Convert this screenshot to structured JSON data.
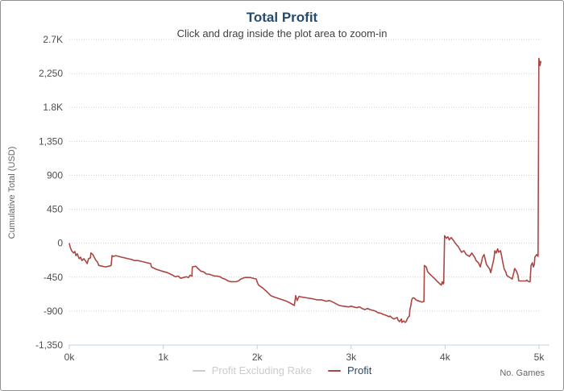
{
  "chart_data": {
    "type": "line",
    "title": "Total Profit",
    "subtitle": "Click and drag inside the plot area to zoom-in",
    "xlabel": "No. Games",
    "ylabel": "Cumulative Total (USD)",
    "xlim": [
      0,
      5000
    ],
    "ylim": [
      -1350,
      2700
    ],
    "grid": "dotted",
    "legend_position": "bottom-center",
    "x_ticks": {
      "values": [
        0,
        1000,
        2000,
        3000,
        4000,
        5000
      ],
      "labels": [
        "0k",
        "1k",
        "2k",
        "3k",
        "4k",
        "5k"
      ]
    },
    "y_ticks": {
      "values": [
        2700,
        2250,
        1800,
        1350,
        900,
        450,
        0,
        -450,
        -900,
        -1350
      ],
      "labels": [
        "2.7K",
        "2,250",
        "1.8K",
        "1,350",
        "900",
        "450",
        "0",
        "-450",
        "-900",
        "-1,350"
      ]
    },
    "colors": {
      "title": "#274b6d",
      "subtitle": "#3f3f3f",
      "tick_label": "#4d4d4d",
      "axis_title": "#666666",
      "grid": "#cccccc",
      "axis_line": "#c0d0e0"
    },
    "series": [
      {
        "name": "Profit Excluding Rake",
        "color": "#cccccc",
        "hidden": true,
        "points": []
      },
      {
        "name": "Profit",
        "color": "#aa4643",
        "hidden": false,
        "points": [
          [
            0,
            0
          ],
          [
            10,
            -55
          ],
          [
            25,
            -100
          ],
          [
            45,
            -130
          ],
          [
            60,
            -110
          ],
          [
            70,
            -165
          ],
          [
            85,
            -140
          ],
          [
            105,
            -205
          ],
          [
            120,
            -185
          ],
          [
            135,
            -230
          ],
          [
            155,
            -205
          ],
          [
            170,
            -230
          ],
          [
            190,
            -270
          ],
          [
            205,
            -205
          ],
          [
            225,
            -195
          ],
          [
            230,
            -130
          ],
          [
            250,
            -150
          ],
          [
            265,
            -185
          ],
          [
            285,
            -230
          ],
          [
            300,
            -250
          ],
          [
            315,
            -295
          ],
          [
            350,
            -305
          ],
          [
            385,
            -315
          ],
          [
            420,
            -305
          ],
          [
            445,
            -295
          ],
          [
            455,
            -165
          ],
          [
            470,
            -175
          ],
          [
            495,
            -165
          ],
          [
            525,
            -175
          ],
          [
            555,
            -185
          ],
          [
            590,
            -195
          ],
          [
            625,
            -205
          ],
          [
            660,
            -215
          ],
          [
            695,
            -230
          ],
          [
            730,
            -230
          ],
          [
            765,
            -240
          ],
          [
            800,
            -250
          ],
          [
            830,
            -260
          ],
          [
            865,
            -270
          ],
          [
            875,
            -315
          ],
          [
            925,
            -345
          ],
          [
            985,
            -370
          ],
          [
            1045,
            -390
          ],
          [
            1100,
            -425
          ],
          [
            1130,
            -445
          ],
          [
            1160,
            -435
          ],
          [
            1185,
            -465
          ],
          [
            1215,
            -455
          ],
          [
            1245,
            -445
          ],
          [
            1270,
            -455
          ],
          [
            1285,
            -425
          ],
          [
            1305,
            -435
          ],
          [
            1310,
            -315
          ],
          [
            1345,
            -305
          ],
          [
            1370,
            -335
          ],
          [
            1400,
            -370
          ],
          [
            1430,
            -380
          ],
          [
            1460,
            -410
          ],
          [
            1485,
            -410
          ],
          [
            1520,
            -425
          ],
          [
            1545,
            -435
          ],
          [
            1570,
            -435
          ],
          [
            1605,
            -445
          ],
          [
            1630,
            -465
          ],
          [
            1655,
            -475
          ],
          [
            1690,
            -500
          ],
          [
            1715,
            -510
          ],
          [
            1775,
            -510
          ],
          [
            1800,
            -500
          ],
          [
            1825,
            -475
          ],
          [
            1845,
            -465
          ],
          [
            1870,
            -455
          ],
          [
            1930,
            -455
          ],
          [
            1955,
            -465
          ],
          [
            1990,
            -475
          ],
          [
            2005,
            -530
          ],
          [
            2015,
            -555
          ],
          [
            2060,
            -595
          ],
          [
            2100,
            -640
          ],
          [
            2145,
            -695
          ],
          [
            2185,
            -715
          ],
          [
            2230,
            -735
          ],
          [
            2270,
            -750
          ],
          [
            2315,
            -770
          ],
          [
            2360,
            -800
          ],
          [
            2395,
            -825
          ],
          [
            2410,
            -695
          ],
          [
            2425,
            -760
          ],
          [
            2445,
            -705
          ],
          [
            2480,
            -715
          ],
          [
            2530,
            -725
          ],
          [
            2580,
            -735
          ],
          [
            2635,
            -750
          ],
          [
            2685,
            -750
          ],
          [
            2735,
            -770
          ],
          [
            2770,
            -760
          ],
          [
            2805,
            -780
          ],
          [
            2875,
            -825
          ],
          [
            2915,
            -835
          ],
          [
            2975,
            -845
          ],
          [
            3000,
            -835
          ],
          [
            3025,
            -845
          ],
          [
            3060,
            -855
          ],
          [
            3090,
            -845
          ],
          [
            3115,
            -865
          ],
          [
            3145,
            -880
          ],
          [
            3175,
            -865
          ],
          [
            3200,
            -880
          ],
          [
            3235,
            -890
          ],
          [
            3260,
            -900
          ],
          [
            3285,
            -920
          ],
          [
            3320,
            -930
          ],
          [
            3345,
            -945
          ],
          [
            3370,
            -955
          ],
          [
            3405,
            -975
          ],
          [
            3415,
            -965
          ],
          [
            3430,
            -985
          ],
          [
            3455,
            -1005
          ],
          [
            3490,
            -985
          ],
          [
            3500,
            -1020
          ],
          [
            3515,
            -1040
          ],
          [
            3535,
            -1005
          ],
          [
            3540,
            -1050
          ],
          [
            3560,
            -1030
          ],
          [
            3575,
            -1050
          ],
          [
            3585,
            -1040
          ],
          [
            3600,
            -995
          ],
          [
            3620,
            -965
          ],
          [
            3625,
            -880
          ],
          [
            3635,
            -835
          ],
          [
            3645,
            -750
          ],
          [
            3655,
            -725
          ],
          [
            3670,
            -725
          ],
          [
            3690,
            -750
          ],
          [
            3705,
            -760
          ],
          [
            3730,
            -770
          ],
          [
            3755,
            -780
          ],
          [
            3775,
            -770
          ],
          [
            3780,
            -295
          ],
          [
            3800,
            -315
          ],
          [
            3815,
            -380
          ],
          [
            3850,
            -425
          ],
          [
            3885,
            -465
          ],
          [
            3920,
            -510
          ],
          [
            3945,
            -540
          ],
          [
            3960,
            -555
          ],
          [
            3970,
            -510
          ],
          [
            3980,
            -540
          ],
          [
            3985,
            -530
          ],
          [
            3995,
            100
          ],
          [
            4015,
            65
          ],
          [
            4030,
            85
          ],
          [
            4045,
            45
          ],
          [
            4065,
            75
          ],
          [
            4090,
            35
          ],
          [
            4115,
            -10
          ],
          [
            4140,
            -45
          ],
          [
            4175,
            -120
          ],
          [
            4200,
            -100
          ],
          [
            4225,
            -150
          ],
          [
            4260,
            -175
          ],
          [
            4285,
            -130
          ],
          [
            4315,
            -185
          ],
          [
            4330,
            -230
          ],
          [
            4355,
            -260
          ],
          [
            4375,
            -315
          ],
          [
            4400,
            -185
          ],
          [
            4415,
            -150
          ],
          [
            4440,
            -280
          ],
          [
            4475,
            -345
          ],
          [
            4485,
            -390
          ],
          [
            4500,
            -315
          ],
          [
            4520,
            -205
          ],
          [
            4530,
            -100
          ],
          [
            4545,
            -130
          ],
          [
            4560,
            -75
          ],
          [
            4570,
            -120
          ],
          [
            4590,
            -100
          ],
          [
            4605,
            -185
          ],
          [
            4615,
            -260
          ],
          [
            4630,
            -345
          ],
          [
            4650,
            -390
          ],
          [
            4655,
            -425
          ],
          [
            4675,
            -445
          ],
          [
            4690,
            -455
          ],
          [
            4715,
            -475
          ],
          [
            4735,
            -370
          ],
          [
            4740,
            -335
          ],
          [
            4760,
            -370
          ],
          [
            4775,
            -425
          ],
          [
            4785,
            -500
          ],
          [
            4860,
            -500
          ],
          [
            4870,
            -490
          ],
          [
            4890,
            -510
          ],
          [
            4905,
            -510
          ],
          [
            4915,
            -295
          ],
          [
            4930,
            -260
          ],
          [
            4940,
            -315
          ],
          [
            4950,
            -280
          ],
          [
            4955,
            -185
          ],
          [
            4975,
            -150
          ],
          [
            4990,
            -175
          ],
          [
            4998,
            2450
          ],
          [
            5010,
            2355
          ],
          [
            5020,
            2415
          ]
        ]
      }
    ]
  },
  "legend": {
    "items": [
      {
        "label": "Profit Excluding Rake",
        "marker_color": "#cccccc",
        "text_color": "#cccccc",
        "hidden": true
      },
      {
        "label": "Profit",
        "marker_color": "#aa4643",
        "text_color": "#274b6d",
        "hidden": false
      }
    ]
  }
}
